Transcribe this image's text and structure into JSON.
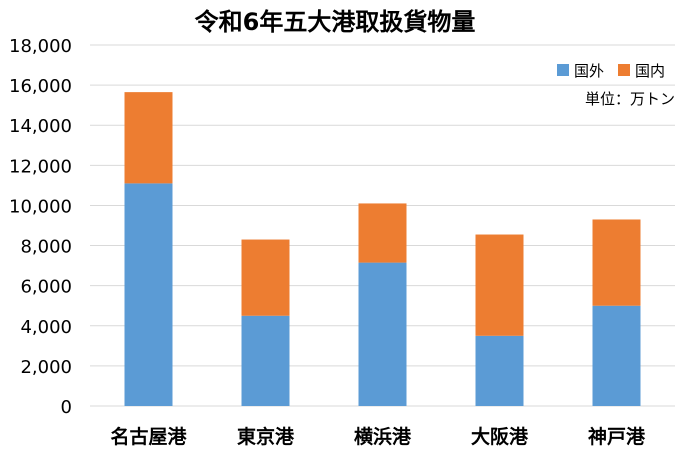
{
  "chart_data": {
    "type": "bar",
    "stacked": true,
    "title": "令和6年五大港取扱貨物量",
    "categories": [
      "名古屋港",
      "東京港",
      "横浜港",
      "大阪港",
      "神戸港"
    ],
    "series": [
      {
        "name": "国外",
        "color": "#5b9bd5",
        "values": [
          11100,
          4500,
          7150,
          3500,
          5000
        ]
      },
      {
        "name": "国内",
        "color": "#ed7d31",
        "values": [
          4550,
          3800,
          2950,
          5050,
          4300
        ]
      }
    ],
    "ylim": [
      0,
      18000
    ],
    "yticks": [
      "0",
      "2,000",
      "4,000",
      "6,000",
      "8,000",
      "10,000",
      "12,000",
      "14,000",
      "16,000",
      "18,000"
    ],
    "ytick_values": [
      0,
      2000,
      4000,
      6000,
      8000,
      10000,
      12000,
      14000,
      16000,
      18000
    ],
    "unit_label": "単位：万トン",
    "grid": true,
    "legend": "top-right"
  }
}
